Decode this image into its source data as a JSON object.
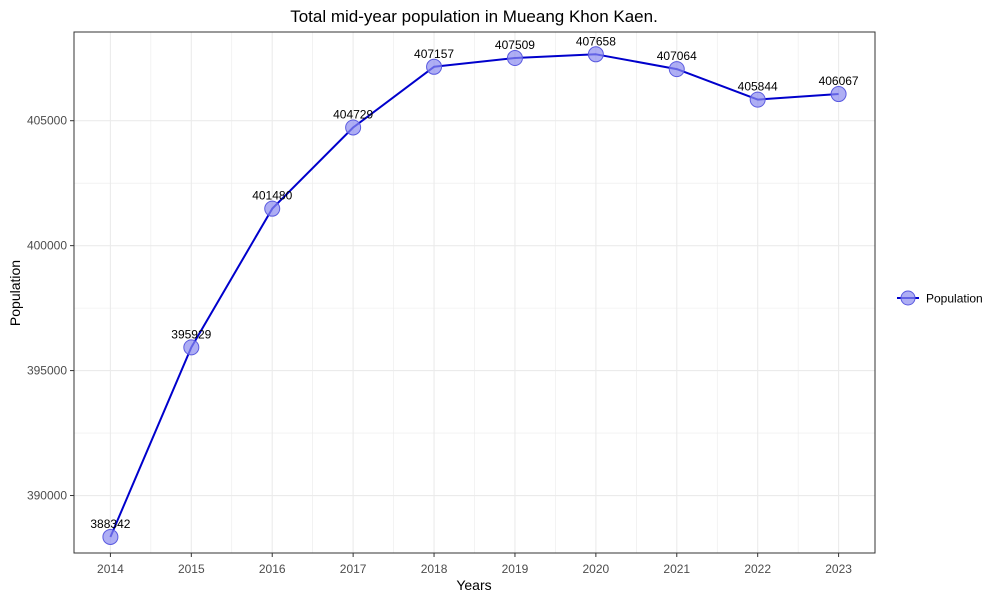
{
  "chart_data": {
    "type": "line",
    "title": "Total mid-year population in Mueang Khon Kaen.",
    "xlabel": "Years",
    "ylabel": "Population",
    "x": [
      2014,
      2015,
      2016,
      2017,
      2018,
      2019,
      2020,
      2021,
      2022,
      2023
    ],
    "x_tick_labels": [
      "2014",
      "2015",
      "2016",
      "2017",
      "2018",
      "2019",
      "2020",
      "2021",
      "2022",
      "2023"
    ],
    "y_tick_labels": [
      "390000",
      "395000",
      "400000",
      "405000"
    ],
    "y_ticks": [
      390000,
      395000,
      400000,
      405000
    ],
    "ylim": [
      387700,
      408550
    ],
    "xlim": [
      2013.55,
      2023.45
    ],
    "grid": true,
    "legend_position": "right",
    "series": [
      {
        "name": "Population",
        "values": [
          388342,
          395929,
          401480,
          404729,
          407157,
          407509,
          407658,
          407064,
          405844,
          406067
        ],
        "data_labels": [
          "388342",
          "395929",
          "401480",
          "404729",
          "407157",
          "407509",
          "407658",
          "407064",
          "405844",
          "406067"
        ]
      }
    ],
    "colors": {
      "line": "#0000CC",
      "marker_fill": "#8B8BF0",
      "marker_stroke": "#5A5AE0",
      "grid": "#EBEBEB",
      "panel_border": "#333333",
      "text": "#4D4D4D"
    }
  }
}
